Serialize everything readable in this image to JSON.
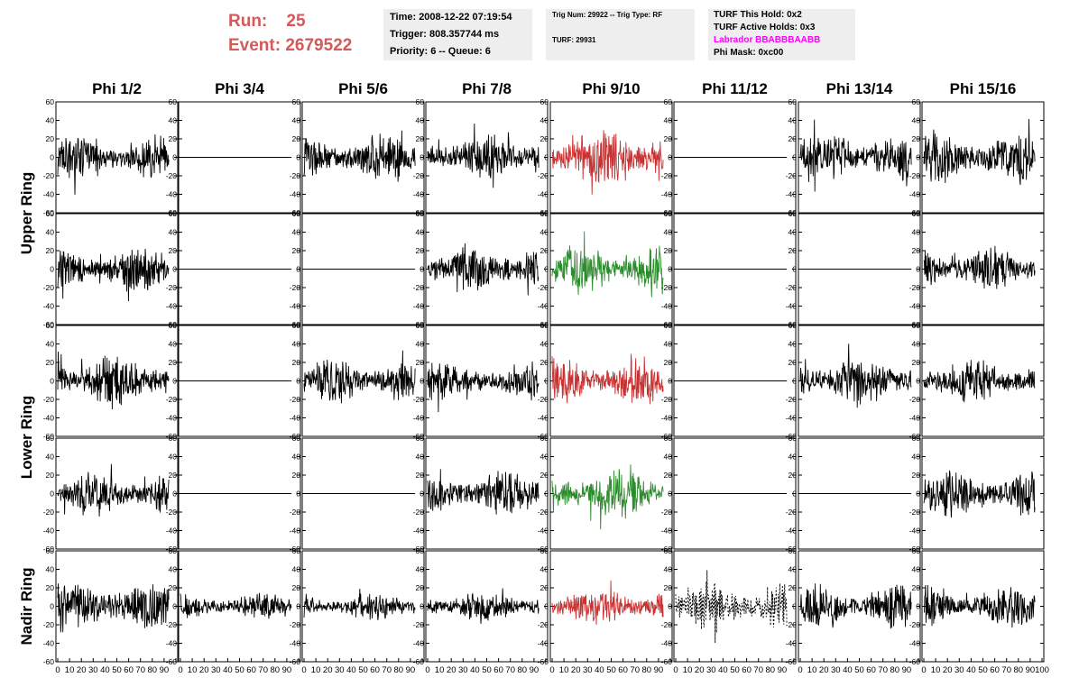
{
  "header": {
    "run_label": "Run:",
    "run_value": "25",
    "event_label": "Event:",
    "event_value": "2679522",
    "time": "Time: 2008-12-22 07:19:54",
    "trigger": "Trigger: 808.357744 ms",
    "priority": "Priority: 6 -- Queue: 6",
    "trig_num": "Trig Num: 29922 -- Trig Type: RF",
    "turf": "TURF: 29931",
    "turf_this_hold": "TURF This Hold: 0x2",
    "turf_active_holds": "TURF Active Holds: 0x3",
    "labrador": "Labrador BBABBBAABB",
    "phi_mask": "Phi Mask: 0xc00"
  },
  "chart_data": {
    "type": "line",
    "columns": [
      "Phi 1/2",
      "Phi 3/4",
      "Phi 5/6",
      "Phi 7/8",
      "Phi 9/10",
      "Phi 11/12",
      "Phi 13/14",
      "Phi 15/16"
    ],
    "rows": [
      "Upper Ring",
      "Lower Ring",
      "Nadir Ring"
    ],
    "ylim": [
      -60,
      60
    ],
    "yticks": [
      -60,
      -40,
      -20,
      0,
      20,
      40,
      60
    ],
    "xlim": [
      0,
      100
    ],
    "xticks": [
      0,
      10,
      20,
      30,
      40,
      50,
      60,
      70,
      80,
      90,
      100
    ],
    "colors": {
      "normal": "#000000",
      "triggered_h": "#c83232",
      "triggered_v": "#2a8c2a"
    },
    "panels": [
      {
        "row": 0,
        "col": 0,
        "style": "black",
        "amp": 22
      },
      {
        "row": 0,
        "col": 1,
        "style": "flat",
        "amp": 0
      },
      {
        "row": 0,
        "col": 2,
        "style": "black",
        "amp": 22
      },
      {
        "row": 0,
        "col": 3,
        "style": "black",
        "amp": 22
      },
      {
        "row": 0,
        "col": 4,
        "style": "red",
        "amp": 26
      },
      {
        "row": 0,
        "col": 5,
        "style": "flat",
        "amp": 0
      },
      {
        "row": 0,
        "col": 6,
        "style": "black",
        "amp": 24
      },
      {
        "row": 0,
        "col": 7,
        "style": "black",
        "amp": 24
      },
      {
        "row": 1,
        "col": 0,
        "style": "black",
        "amp": 20
      },
      {
        "row": 1,
        "col": 1,
        "style": "flat",
        "amp": 0
      },
      {
        "row": 1,
        "col": 2,
        "style": "flat",
        "amp": 0
      },
      {
        "row": 1,
        "col": 3,
        "style": "black",
        "amp": 22
      },
      {
        "row": 1,
        "col": 4,
        "style": "green",
        "amp": 22
      },
      {
        "row": 1,
        "col": 5,
        "style": "flat",
        "amp": 0
      },
      {
        "row": 1,
        "col": 6,
        "style": "flat",
        "amp": 0
      },
      {
        "row": 1,
        "col": 7,
        "style": "black",
        "amp": 20
      },
      {
        "row": 2,
        "col": 0,
        "style": "black",
        "amp": 24
      },
      {
        "row": 2,
        "col": 1,
        "style": "flat",
        "amp": 0
      },
      {
        "row": 2,
        "col": 2,
        "style": "black",
        "amp": 20
      },
      {
        "row": 2,
        "col": 3,
        "style": "black",
        "amp": 18
      },
      {
        "row": 2,
        "col": 4,
        "style": "red",
        "amp": 22
      },
      {
        "row": 2,
        "col": 5,
        "style": "flat",
        "amp": 0
      },
      {
        "row": 2,
        "col": 6,
        "style": "black",
        "amp": 22
      },
      {
        "row": 2,
        "col": 7,
        "style": "black",
        "amp": 20
      },
      {
        "row": 3,
        "col": 0,
        "style": "black",
        "amp": 20
      },
      {
        "row": 3,
        "col": 1,
        "style": "flat",
        "amp": 0
      },
      {
        "row": 3,
        "col": 2,
        "style": "flat",
        "amp": 0
      },
      {
        "row": 3,
        "col": 3,
        "style": "black",
        "amp": 20
      },
      {
        "row": 3,
        "col": 4,
        "style": "green",
        "amp": 22
      },
      {
        "row": 3,
        "col": 5,
        "style": "flat",
        "amp": 0
      },
      {
        "row": 3,
        "col": 6,
        "style": "flat",
        "amp": 0
      },
      {
        "row": 3,
        "col": 7,
        "style": "black",
        "amp": 22
      },
      {
        "row": 4,
        "col": 0,
        "style": "black",
        "amp": 24
      },
      {
        "row": 4,
        "col": 1,
        "style": "black",
        "amp": 12
      },
      {
        "row": 4,
        "col": 2,
        "style": "black",
        "amp": 12
      },
      {
        "row": 4,
        "col": 3,
        "style": "black",
        "amp": 14
      },
      {
        "row": 4,
        "col": 4,
        "style": "red",
        "amp": 18
      },
      {
        "row": 4,
        "col": 5,
        "style": "dashed",
        "amp": 22
      },
      {
        "row": 4,
        "col": 6,
        "style": "black",
        "amp": 20
      },
      {
        "row": 4,
        "col": 7,
        "style": "black",
        "amp": 20
      }
    ]
  }
}
